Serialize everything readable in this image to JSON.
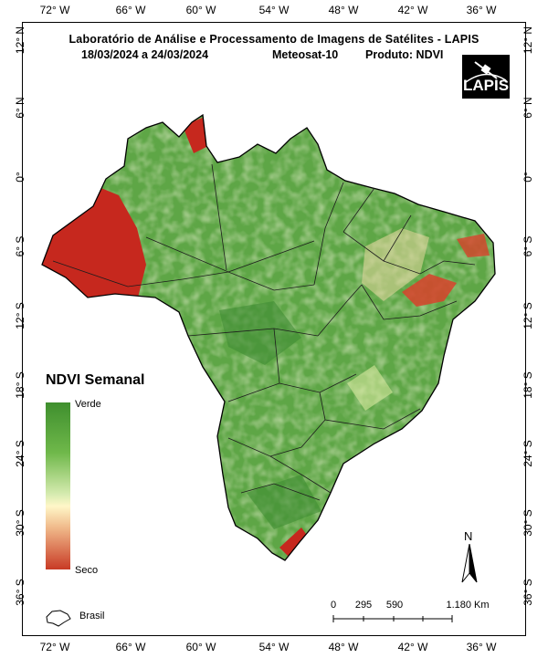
{
  "title": "Laboratório de Análise e Processamento de Imagens de Satélites - LAPIS",
  "date_range": "18/03/2024  a  24/03/2024",
  "satellite": "Meteosat-10",
  "product": "Produto: NDVI",
  "logo_text": "LAPIS",
  "longitude_labels": [
    "72° W",
    "66° W",
    "60° W",
    "54° W",
    "48° W",
    "42° W",
    "36° W"
  ],
  "latitude_labels": [
    "12° N",
    "6° N",
    "0°",
    "6° S",
    "12° S",
    "18° S",
    "24° S",
    "30° S",
    "36° S"
  ],
  "legend": {
    "title": "NDVI Semanal",
    "top_label": "Verde",
    "bottom_label": "Seco",
    "colors": [
      "#3f8f2e",
      "#6fb84a",
      "#d6ebb0",
      "#fff7c8",
      "#f0b98a",
      "#c83a25"
    ]
  },
  "north_label": "N",
  "scale": {
    "ticks": [
      "0",
      "295",
      "590",
      "1.180 Km"
    ]
  },
  "boundary_legend": "Brasil"
}
